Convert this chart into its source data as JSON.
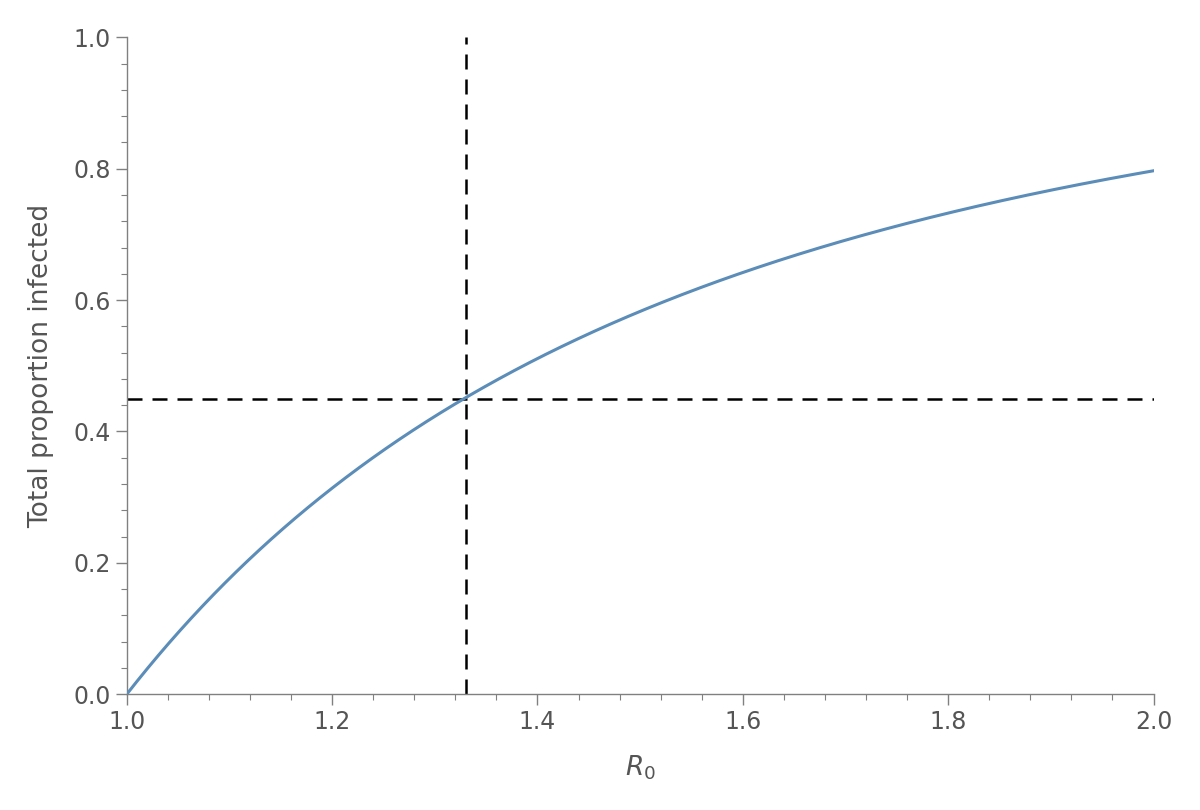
{
  "x_min": 1.0,
  "x_max": 2.0,
  "y_min": 0.0,
  "y_max": 1.0,
  "x_ticks": [
    1.0,
    1.2,
    1.4,
    1.6,
    1.8,
    2.0
  ],
  "y_ticks": [
    0.0,
    0.2,
    0.4,
    0.6,
    0.8,
    1.0
  ],
  "vline_x": 1.33,
  "hline_y": 0.45,
  "curve_color": "#5b8db8",
  "dashed_color": "#000000",
  "xlabel": "$\\mathit{R}_0$",
  "ylabel": "Total proportion infected",
  "background_color": "#ffffff",
  "curve_linewidth": 2.2,
  "dashed_linewidth": 1.8,
  "label_fontsize": 19,
  "tick_fontsize": 17,
  "spine_color": "#808080",
  "tick_color": "#808080",
  "label_color": "#555555"
}
